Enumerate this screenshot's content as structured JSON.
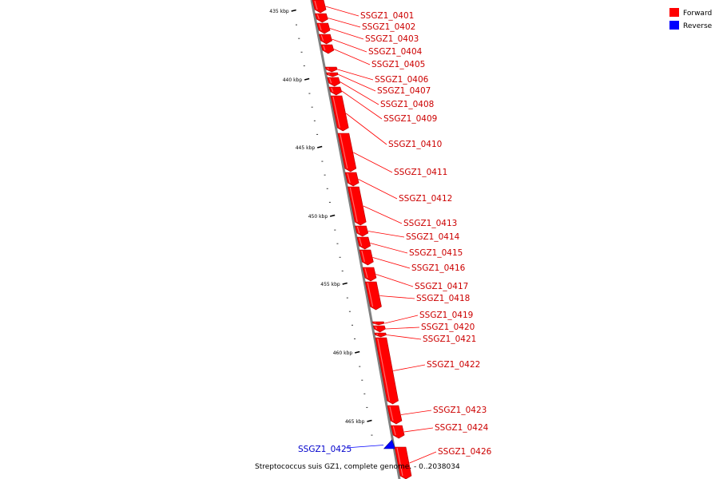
{
  "title": "Streptococcus suis GZ1, complete genome. - 0..2038034",
  "legend": [
    {
      "label": "Forward",
      "color": "#ff0000"
    },
    {
      "label": "Reverse",
      "color": "#0000ff"
    }
  ],
  "colors": {
    "forward": "#ff0000",
    "forward_dark": "#b00000",
    "reverse": "#0000ff",
    "backbone": "#808080"
  },
  "ticks": [
    {
      "label": "435 kbp"
    },
    {
      "label": "440 kbp"
    },
    {
      "label": "445 kbp"
    },
    {
      "label": "450 kbp"
    },
    {
      "label": "455 kbp"
    },
    {
      "label": "460 kbp"
    },
    {
      "label": "465 kbp"
    }
  ],
  "genes": [
    {
      "name": "SSGZ1_0401",
      "strand": "forward"
    },
    {
      "name": "SSGZ1_0402",
      "strand": "forward"
    },
    {
      "name": "SSGZ1_0403",
      "strand": "forward"
    },
    {
      "name": "SSGZ1_0404",
      "strand": "forward"
    },
    {
      "name": "SSGZ1_0405",
      "strand": "forward"
    },
    {
      "name": "SSGZ1_0406",
      "strand": "forward"
    },
    {
      "name": "SSGZ1_0407",
      "strand": "forward"
    },
    {
      "name": "SSGZ1_0408",
      "strand": "forward"
    },
    {
      "name": "SSGZ1_0409",
      "strand": "forward"
    },
    {
      "name": "SSGZ1_0410",
      "strand": "forward"
    },
    {
      "name": "SSGZ1_0411",
      "strand": "forward"
    },
    {
      "name": "SSGZ1_0412",
      "strand": "forward"
    },
    {
      "name": "SSGZ1_0413",
      "strand": "forward"
    },
    {
      "name": "SSGZ1_0414",
      "strand": "forward"
    },
    {
      "name": "SSGZ1_0415",
      "strand": "forward"
    },
    {
      "name": "SSGZ1_0416",
      "strand": "forward"
    },
    {
      "name": "SSGZ1_0417",
      "strand": "forward"
    },
    {
      "name": "SSGZ1_0418",
      "strand": "forward"
    },
    {
      "name": "SSGZ1_0419",
      "strand": "forward"
    },
    {
      "name": "SSGZ1_0420",
      "strand": "forward"
    },
    {
      "name": "SSGZ1_0421",
      "strand": "forward"
    },
    {
      "name": "SSGZ1_0422",
      "strand": "forward"
    },
    {
      "name": "SSGZ1_0423",
      "strand": "forward"
    },
    {
      "name": "SSGZ1_0424",
      "strand": "forward"
    },
    {
      "name": "SSGZ1_0425",
      "strand": "reverse"
    },
    {
      "name": "SSGZ1_0426",
      "strand": "forward"
    }
  ]
}
